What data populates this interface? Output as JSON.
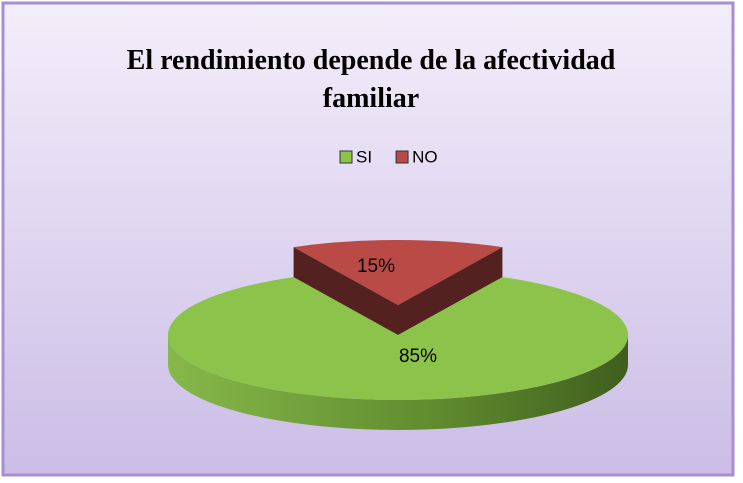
{
  "chart_data": {
    "type": "pie",
    "title": "El rendimiento depende de la afectividad familiar",
    "categories": [
      "SI",
      "NO"
    ],
    "values": [
      85,
      15
    ],
    "value_labels": [
      "85%",
      "15%"
    ],
    "colors": [
      "#8cc34a",
      "#b94a45"
    ],
    "legend": "top",
    "exploded": [
      false,
      true
    ]
  }
}
